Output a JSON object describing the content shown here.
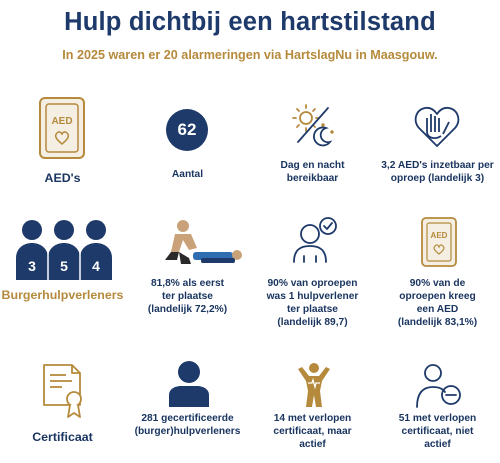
{
  "header": {
    "title": "Hulp dichtbij een hartstilstand",
    "subtitle": "In 2025 waren er 20 alarmeringen via HartslagNu in Maasgouw."
  },
  "colors": {
    "navy": "#1e3a6a",
    "gold": "#b58a3c",
    "skin": "#c9a27a"
  },
  "row1": {
    "aed_label": "AED's",
    "aed_icon_text": "AED",
    "count_value": "62",
    "count_label": "Aantal",
    "daynight_line1": "Dag en nacht",
    "daynight_line2": "bereikbaar",
    "deploy_line1": "3,2 AED's inzetbaar per",
    "deploy_line2": "oproep (landelijk 3)"
  },
  "row2": {
    "helpers_label": "Burgerhulpverleners",
    "helper_numbers": [
      "3",
      "5",
      "4"
    ],
    "first_line1": "81,8% als eerst",
    "first_line2": "ter plaatse",
    "first_line3": "(landelijk 72,2%)",
    "one_line1": "90% van oproepen",
    "one_line2": "was 1 hulpverlener",
    "one_line3": "ter plaatse",
    "one_line4": "(landelijk 89,7)",
    "aed_line1": "90% van de",
    "aed_line2": "oproepen kreeg",
    "aed_line3": "een AED",
    "aed_line4": "(landelijk 83,1%)",
    "aed_icon_text": "AED"
  },
  "row3": {
    "cert_label": "Certificaat",
    "certified_line1": "281 gecertificeerde",
    "certified_line2": "(burger)hulpverleners",
    "expired_active_line1": "14 met verlopen",
    "expired_active_line2": "certificaat, maar",
    "expired_active_line3": "actief",
    "expired_inactive_line1": "51 met verlopen",
    "expired_inactive_line2": "certificaat, niet",
    "expired_inactive_line3": "actief"
  }
}
